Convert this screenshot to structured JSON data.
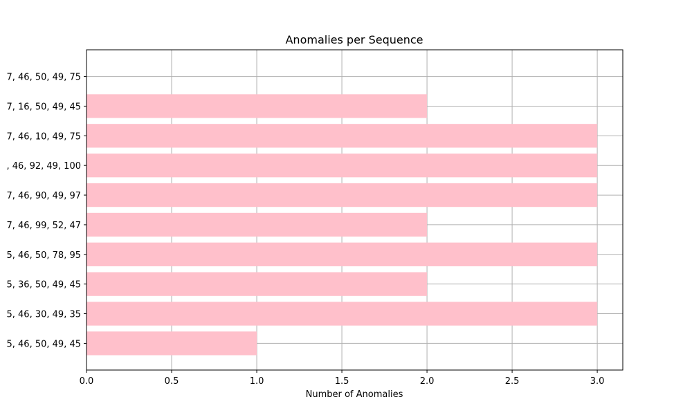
{
  "chart_data": {
    "type": "bar",
    "orientation": "horizontal",
    "title": "Anomalies per Sequence",
    "xlabel": "Number of Anomalies",
    "ylabel": "",
    "xlim": [
      0,
      3.15
    ],
    "xticks": [
      0.0,
      0.5,
      1.0,
      1.5,
      2.0,
      2.5,
      3.0
    ],
    "xtick_labels": [
      "0.0",
      "0.5",
      "1.0",
      "1.5",
      "2.0",
      "2.5",
      "3.0"
    ],
    "grid": true,
    "bar_color": "#ffc0cb",
    "categories": [
      "5, 46, 50, 49, 45",
      "5, 46, 30, 49, 35",
      "5, 36, 50, 49, 45",
      "5, 46, 50, 78, 95",
      "7, 46, 99, 52, 47",
      "7, 46, 90, 49, 97",
      ", 46, 92, 49, 100",
      "7, 46, 10, 49, 75",
      "7, 16, 50, 49, 45",
      "7, 46, 50, 49, 75"
    ],
    "values": [
      1,
      3,
      2,
      3,
      2,
      3,
      3,
      3,
      2,
      0
    ]
  }
}
